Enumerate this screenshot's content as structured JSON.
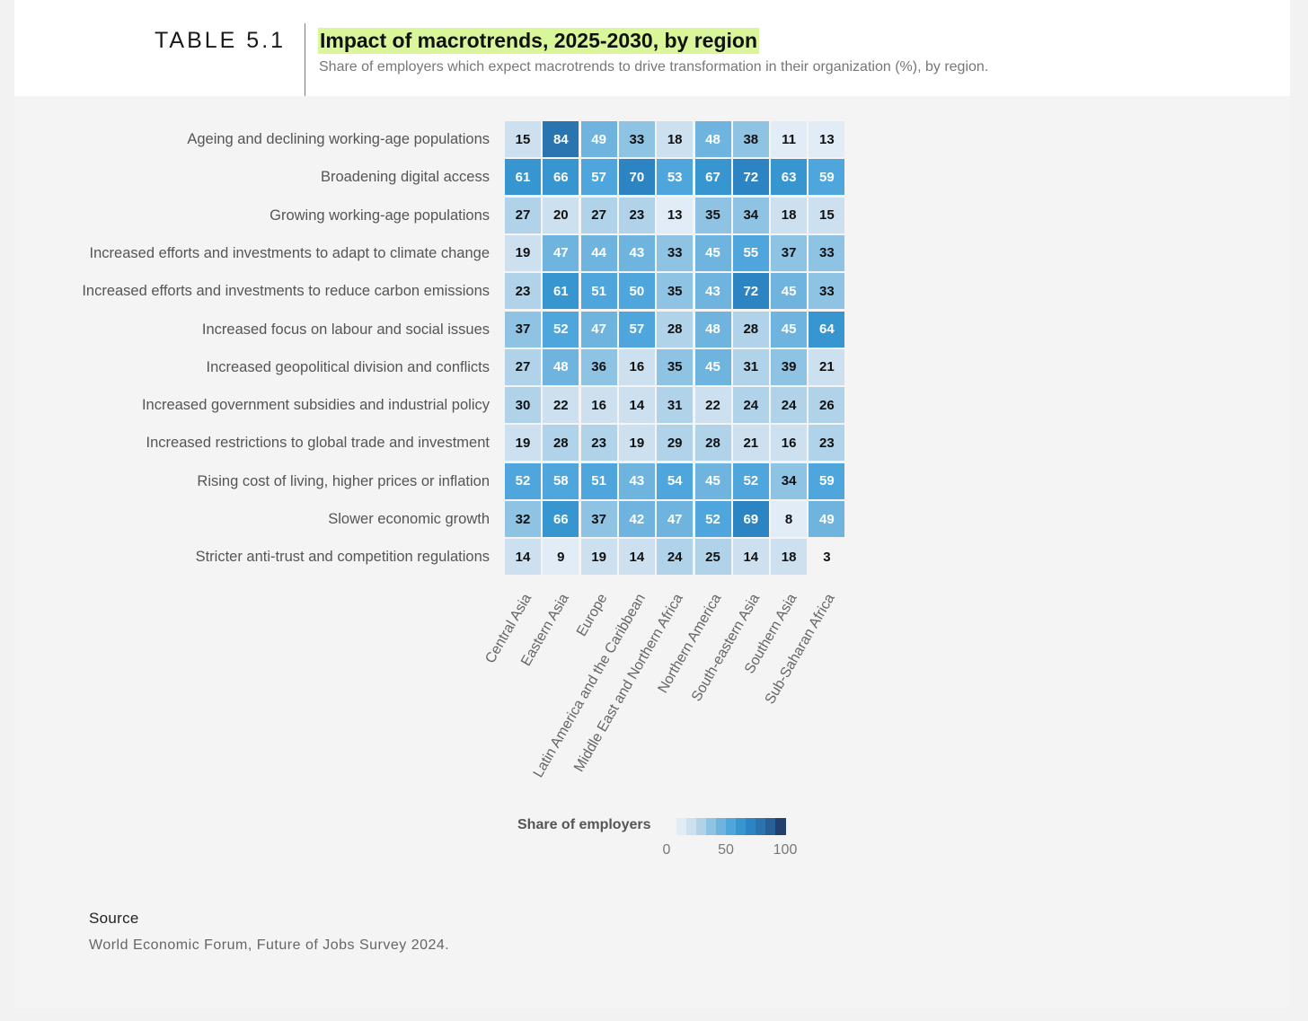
{
  "header": {
    "table_label": "TABLE 5.1",
    "title": "Impact of macrotrends, 2025-2030, by region",
    "subtitle": "Share of employers which expect macrotrends to drive transformation in their organization (%), by region."
  },
  "chart_data": {
    "type": "heatmap",
    "title": "Impact of macrotrends, 2025-2030, by region",
    "rows": [
      "Ageing and declining working-age populations",
      "Broadening digital access",
      "Growing working-age populations",
      "Increased efforts and investments to adapt to climate change",
      "Increased efforts and investments to reduce carbon emissions",
      "Increased focus on labour and social issues",
      "Increased geopolitical division and conflicts",
      "Increased government subsidies and industrial policy",
      "Increased restrictions to global trade and investment",
      "Rising cost of living, higher prices or inflation",
      "Slower economic growth",
      "Stricter anti-trust and competition regulations"
    ],
    "columns": [
      "Central Asia",
      "Eastern Asia",
      "Europe",
      "Latin America and the Caribbean",
      "Middle East and Northern Africa",
      "Northern America",
      "South-eastern Asia",
      "Southern Asia",
      "Sub-Saharan Africa"
    ],
    "values": [
      [
        15,
        84,
        49,
        33,
        18,
        48,
        38,
        11,
        13
      ],
      [
        61,
        66,
        57,
        70,
        53,
        67,
        72,
        63,
        59
      ],
      [
        27,
        20,
        27,
        23,
        13,
        35,
        34,
        18,
        15
      ],
      [
        19,
        47,
        44,
        43,
        33,
        45,
        55,
        37,
        33
      ],
      [
        23,
        61,
        51,
        50,
        35,
        43,
        72,
        45,
        33
      ],
      [
        37,
        52,
        47,
        57,
        28,
        48,
        28,
        45,
        64
      ],
      [
        27,
        48,
        36,
        16,
        35,
        45,
        31,
        39,
        21
      ],
      [
        30,
        22,
        16,
        14,
        31,
        22,
        24,
        24,
        26
      ],
      [
        19,
        28,
        23,
        19,
        29,
        28,
        21,
        16,
        23
      ],
      [
        52,
        58,
        51,
        43,
        54,
        45,
        52,
        34,
        59
      ],
      [
        32,
        66,
        37,
        42,
        47,
        52,
        69,
        8,
        49
      ],
      [
        14,
        9,
        19,
        14,
        24,
        25,
        14,
        18,
        3
      ]
    ],
    "color_scale": {
      "title": "Share of employers",
      "min": 0,
      "max": 100,
      "ticks": [
        0,
        50,
        100
      ],
      "colors": [
        "#f4f4f4",
        "#e2ecf6",
        "#cde0ef",
        "#b0d3ea",
        "#8fc3e4",
        "#6fb4df",
        "#4fa6dc",
        "#3795d0",
        "#2d84c2",
        "#2a74b0",
        "#285f97",
        "#233f6e"
      ]
    }
  },
  "source": {
    "label": "Source",
    "text": "World Economic Forum, Future of Jobs Survey 2024."
  }
}
